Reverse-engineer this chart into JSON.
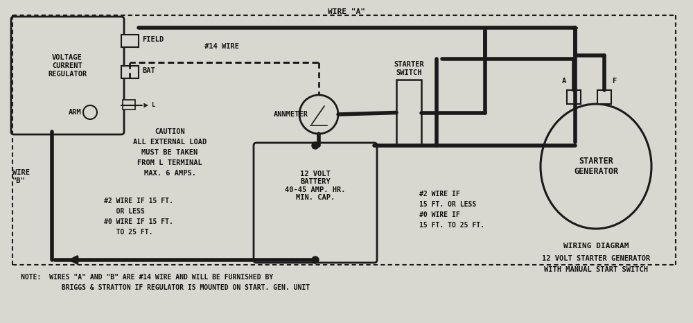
{
  "bg_color": "#d8d8d0",
  "line_color": "#1a1a1a",
  "text_color": "#111111",
  "title": "WIRING DIAGRAM",
  "subtitle_line1": "12 VOLT STARTER GENERATOR",
  "subtitle_line2": "WITH MANUAL START SWITCH",
  "note_line1": "NOTE:  WIRES \"A\" AND \"B\" ARE #14 WIRE AND WILL BE FURNISHED BY",
  "note_line2": "          BRIGGS & STRATTON IF REGULATOR IS MOUNTED ON START. GEN. UNIT",
  "caution_line1": "CAUTION",
  "caution_line2": "ALL EXTERNAL LOAD",
  "caution_line3": "MUST BE TAKEN",
  "caution_line4": "FROM L TERMINAL",
  "caution_line5": "MAX. 6 AMPS.",
  "wire_spec_left_1": "#2 WIRE IF 15 FT.",
  "wire_spec_left_2": "   OR LESS",
  "wire_spec_left_3": "#0 WIRE IF 15 FT.",
  "wire_spec_left_4": "   TO 25 FT.",
  "wire_spec_right_1": "#2 WIRE IF",
  "wire_spec_right_2": "15 FT. OR LESS",
  "wire_spec_right_3": "#0 WIRE IF",
  "wire_spec_right_4": "15 FT. TO 25 FT.",
  "battery_label": "12 VOLT\nBATTERY\n40-45 AMP. HR.\nMIN. CAP.",
  "regulator_label": "VOLTAGE\nCURRENT\nREGULATOR",
  "generator_label": "STARTER\nGENERATOR",
  "wire_a_label": "WIRE \"A\"",
  "wire_b_label": "WIRE\n\"B\"",
  "field_label": "FIELD",
  "bat_label": "BAT",
  "arm_label": "ARM",
  "wire14_label": "#14 WIRE",
  "ammeter_label": "ANNMETER",
  "starter_switch_label": "STARTER\nSWITCH",
  "terminal_a": "A",
  "terminal_f": "F",
  "fig_w": 10.0,
  "fig_h": 4.66,
  "dpi": 100
}
